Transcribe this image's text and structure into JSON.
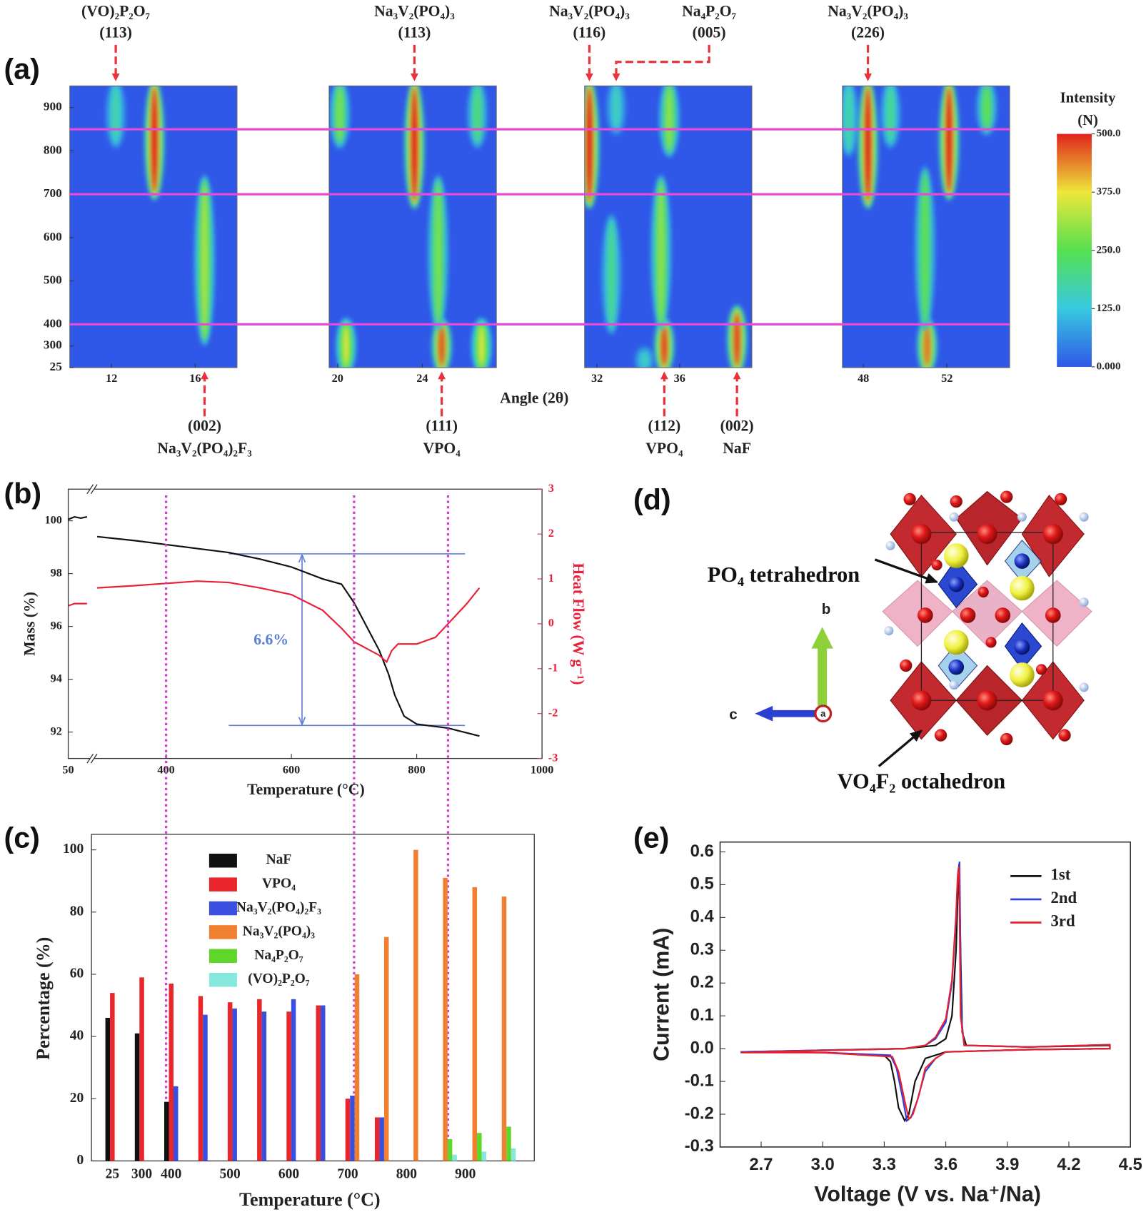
{
  "chart_data": [
    {
      "type": "heatmap",
      "label": "(a)",
      "xlabel": "Angle (2θ)",
      "ylim": [
        25,
        950
      ],
      "yticks": [
        25,
        300,
        400,
        500,
        600,
        700,
        800,
        900
      ],
      "colormap": [
        "#2f57e8",
        "#38c9e0",
        "#55e050",
        "#eee63a",
        "#e0241c"
      ],
      "clim": [
        0,
        500
      ],
      "colorbar_title": "Intensity",
      "colorbar_unit": "(N)",
      "colorbar_ticks": [
        {
          "value": 500,
          "label": "500.0"
        },
        {
          "value": 375,
          "label": "375.0"
        },
        {
          "value": 250,
          "label": "250.0"
        },
        {
          "value": 125,
          "label": "125.0"
        },
        {
          "value": 0,
          "label": "0.000"
        }
      ],
      "hlines": [
        850,
        700,
        400
      ],
      "hline_color": "#e64ad8",
      "panels": [
        {
          "xlim": [
            10,
            18
          ],
          "xticks": [
            12,
            16
          ],
          "peaks": [
            {
              "angle": 12.2,
              "from": 820,
              "to": 950,
              "intensity": 180
            },
            {
              "angle": 14.05,
              "from": 700,
              "to": 950,
              "intensity": 500
            },
            {
              "angle": 16.45,
              "from": 330,
              "to": 730,
              "intensity": 320
            }
          ]
        },
        {
          "xlim": [
            19.6,
            27.5
          ],
          "xticks": [
            20,
            24
          ],
          "peaks": [
            {
              "angle": 20.1,
              "from": 820,
              "to": 950,
              "intensity": 280
            },
            {
              "angle": 20.4,
              "from": 25,
              "to": 400,
              "intensity": 360
            },
            {
              "angle": 23.63,
              "from": 680,
              "to": 950,
              "intensity": 500
            },
            {
              "angle": 24.92,
              "from": 25,
              "to": 400,
              "intensity": 470
            },
            {
              "angle": 24.75,
              "from": 400,
              "to": 730,
              "intensity": 280
            },
            {
              "angle": 26.8,
              "from": 25,
              "to": 400,
              "intensity": 360
            },
            {
              "angle": 26.6,
              "from": 820,
              "to": 950,
              "intensity": 220
            }
          ]
        },
        {
          "xlim": [
            31.4,
            39.5
          ],
          "xticks": [
            32,
            36
          ],
          "peaks": [
            {
              "angle": 31.63,
              "from": 680,
              "to": 950,
              "intensity": 500
            },
            {
              "angle": 32.93,
              "from": 850,
              "to": 950,
              "intensity": 160
            },
            {
              "angle": 32.7,
              "from": 380,
              "to": 640,
              "intensity": 200
            },
            {
              "angle": 34.3,
              "from": 25,
              "to": 220,
              "intensity": 160
            },
            {
              "angle": 35.26,
              "from": 25,
              "to": 400,
              "intensity": 480
            },
            {
              "angle": 35.1,
              "from": 400,
              "to": 730,
              "intensity": 300
            },
            {
              "angle": 35.5,
              "from": 800,
              "to": 950,
              "intensity": 300
            },
            {
              "angle": 38.78,
              "from": 25,
              "to": 430,
              "intensity": 480
            }
          ]
        },
        {
          "xlim": [
            47,
            55
          ],
          "xticks": [
            48,
            52
          ],
          "peaks": [
            {
              "angle": 47.3,
              "from": 800,
              "to": 950,
              "intensity": 180
            },
            {
              "angle": 48.22,
              "from": 680,
              "to": 950,
              "intensity": 500
            },
            {
              "angle": 49.3,
              "from": 820,
              "to": 950,
              "intensity": 200
            },
            {
              "angle": 51.05,
              "from": 25,
              "to": 400,
              "intensity": 450
            },
            {
              "angle": 50.95,
              "from": 400,
              "to": 750,
              "intensity": 260
            },
            {
              "angle": 52.1,
              "from": 700,
              "to": 950,
              "intensity": 500
            },
            {
              "angle": 53.9,
              "from": 850,
              "to": 950,
              "intensity": 260
            }
          ]
        }
      ],
      "annotations_top": [
        {
          "lines": [
            "(VO)₂P₂O₇",
            "(113)"
          ],
          "angle": 12.2
        },
        {
          "lines": [
            "Na₃V₂(PO₄)₃",
            "(113)"
          ],
          "angle": 23.63
        },
        {
          "lines": [
            "Na₃V₂(PO₄)₃",
            "(116)"
          ],
          "angle": 31.63
        },
        {
          "lines": [
            "Na₄P₂O₇",
            "(005)"
          ],
          "angle": 32.93
        },
        {
          "lines": [
            "Na₃V₂(PO₄)₃",
            "(226)"
          ],
          "angle": 48.22
        }
      ],
      "annotations_bottom": [
        {
          "lines": [
            "(002)",
            "Na₃V₂(PO₄)₂F₃"
          ],
          "angle": 16.45
        },
        {
          "lines": [
            "(111)",
            "VPO₄"
          ],
          "angle": 24.92
        },
        {
          "lines": [
            "(112)",
            "VPO₄"
          ],
          "angle": 35.26
        },
        {
          "lines": [
            "(002)",
            "NaF"
          ],
          "angle": 38.78
        }
      ],
      "annotation_color": "#e8323c"
    },
    {
      "type": "line",
      "label": "(b)",
      "xlabel": "Temperature (°C)",
      "ylabel": "Mass (%)",
      "y2label": "Heat Flow (W g⁻¹)",
      "xlim": [
        50,
        1000
      ],
      "xbreak": [
        85,
        285
      ],
      "xticks": [
        50,
        400,
        600,
        800,
        1000
      ],
      "ylim": [
        91,
        101.2
      ],
      "yticks": [
        92,
        94,
        96,
        98,
        100
      ],
      "y2lim": [
        -3,
        3
      ],
      "y2ticks": [
        -3,
        -2,
        -1,
        0,
        1,
        2,
        3
      ],
      "y2color": "#e8203a",
      "series": [
        {
          "color": "#111111",
          "x": [
            50,
            60,
            70,
            80,
            290,
            350,
            400,
            450,
            500,
            550,
            600,
            650,
            680,
            700,
            720,
            740,
            755,
            765,
            780,
            800,
            850,
            900
          ],
          "values": [
            100.05,
            100.15,
            100.1,
            100.15,
            99.4,
            99.25,
            99.1,
            98.95,
            98.8,
            98.55,
            98.25,
            97.8,
            97.6,
            96.9,
            96.0,
            95.1,
            94.2,
            93.4,
            92.6,
            92.3,
            92.15,
            91.85
          ]
        },
        {
          "color": "#e8203a",
          "axis": "y2",
          "x": [
            50,
            60,
            70,
            80,
            290,
            350,
            400,
            450,
            500,
            550,
            600,
            650,
            680,
            700,
            720,
            740,
            752,
            760,
            770,
            800,
            830,
            850,
            880,
            900
          ],
          "values": [
            0.4,
            0.45,
            0.45,
            0.45,
            0.8,
            0.85,
            0.9,
            0.95,
            0.92,
            0.8,
            0.65,
            0.3,
            -0.1,
            -0.4,
            -0.55,
            -0.7,
            -0.85,
            -0.6,
            -0.45,
            -0.45,
            -0.3,
            0.0,
            0.45,
            0.8
          ]
        }
      ],
      "reference_lines": {
        "values": [
          98.75,
          92.25
        ],
        "x": [
          500,
          877
        ],
        "color": "#5b7fd6"
      },
      "bracket": {
        "label": "6.6%",
        "x": 617
      },
      "vlines": [
        400,
        700,
        850
      ],
      "vline_color": "#d040d0"
    },
    {
      "type": "bar",
      "label": "(c)",
      "xlabel": "Temperature (°C)",
      "ylabel": "Percentage (%)",
      "categories": [
        "25",
        "300",
        "400",
        null,
        "500",
        null,
        "600",
        null,
        "700",
        null,
        "800",
        null,
        "900",
        null
      ],
      "ylim": [
        0,
        105
      ],
      "yticks": [
        0,
        20,
        40,
        60,
        80,
        100
      ],
      "series": [
        {
          "name": "NaF",
          "color": "#111111",
          "values": [
            46,
            41,
            19,
            null,
            null,
            null,
            null,
            null,
            null,
            null,
            null,
            null,
            null,
            null
          ]
        },
        {
          "name": "VPO₄",
          "color": "#e8262c",
          "values": [
            54,
            59,
            57,
            53,
            51,
            52,
            48,
            50,
            20,
            14,
            null,
            null,
            null,
            null
          ]
        },
        {
          "name": "Na₃V₂(PO₄)₂F₃",
          "color": "#3a4fe0",
          "values": [
            null,
            null,
            24,
            47,
            49,
            48,
            52,
            50,
            21,
            14,
            null,
            null,
            null,
            null
          ]
        },
        {
          "name": "Na₃V₂(PO₄)₃",
          "color": "#f07f30",
          "values": [
            null,
            null,
            null,
            null,
            null,
            null,
            null,
            null,
            60,
            72,
            100,
            91,
            88,
            85
          ]
        },
        {
          "name": "Na₄P₂O₇",
          "color": "#5ed62a",
          "values": [
            null,
            null,
            null,
            null,
            null,
            null,
            null,
            null,
            null,
            null,
            null,
            7,
            9,
            11
          ]
        },
        {
          "name": "(VO)₂P₂O₇",
          "color": "#86e8dc",
          "values": [
            null,
            null,
            null,
            null,
            null,
            null,
            null,
            null,
            null,
            null,
            null,
            2,
            3,
            4
          ]
        }
      ],
      "legend": "upper left"
    },
    {
      "type": "line",
      "label": "(e)",
      "xlabel": "Voltage (V vs. Na⁺/Na)",
      "ylabel": "Current (mA)",
      "xlim": [
        2.5,
        4.5
      ],
      "xticks": [
        2.7,
        {
          "value": 3,
          "label": "3.0"
        },
        3.3,
        3.6,
        3.9,
        4.2,
        4.5
      ],
      "ylim": [
        -0.3,
        0.63
      ],
      "yticks": [
        -0.3,
        -0.2,
        -0.1,
        {
          "value": 0,
          "label": "0.0"
        },
        0.1,
        0.2,
        0.3,
        0.4,
        0.5,
        0.6
      ],
      "legend": "upper right",
      "series": [
        {
          "name": "1st",
          "color": "#111111",
          "x": [
            2.6,
            3.0,
            3.4,
            3.55,
            3.6,
            3.63,
            3.65,
            3.66,
            3.665,
            3.672,
            3.68,
            3.7,
            4.0,
            4.4,
            4.4,
            4.0,
            3.6,
            3.5,
            3.45,
            3.42,
            3.4,
            3.37,
            3.35,
            3.33,
            3.3,
            3.0,
            2.6
          ],
          "values": [
            -0.01,
            -0.005,
            0.0,
            0.01,
            0.03,
            0.1,
            0.3,
            0.5,
            0.56,
            0.3,
            0.05,
            0.01,
            0.005,
            0.01,
            0.0,
            -0.003,
            -0.01,
            -0.03,
            -0.1,
            -0.2,
            -0.22,
            -0.18,
            -0.1,
            -0.04,
            -0.02,
            -0.012,
            -0.01
          ]
        },
        {
          "name": "2nd",
          "color": "#2a3fe0",
          "x": [
            2.6,
            3.0,
            3.4,
            3.5,
            3.55,
            3.6,
            3.63,
            3.65,
            3.66,
            3.667,
            3.675,
            3.69,
            4.0,
            4.4,
            4.4,
            4.0,
            3.6,
            3.55,
            3.5,
            3.46,
            3.43,
            3.41,
            3.39,
            3.36,
            3.33,
            3.0,
            2.6
          ],
          "values": [
            -0.01,
            -0.005,
            0.0,
            0.01,
            0.03,
            0.08,
            0.2,
            0.4,
            0.54,
            0.57,
            0.1,
            0.01,
            0.005,
            0.012,
            0.0,
            -0.003,
            -0.01,
            -0.03,
            -0.07,
            -0.16,
            -0.21,
            -0.22,
            -0.15,
            -0.06,
            -0.02,
            -0.012,
            -0.01
          ]
        },
        {
          "name": "3rd",
          "color": "#e8202c",
          "x": [
            2.6,
            3.0,
            3.4,
            3.5,
            3.55,
            3.6,
            3.63,
            3.65,
            3.658,
            3.665,
            3.672,
            3.69,
            4.0,
            4.4,
            4.4,
            4.0,
            3.6,
            3.55,
            3.5,
            3.47,
            3.44,
            3.42,
            3.4,
            3.37,
            3.34,
            3.0,
            2.6
          ],
          "values": [
            -0.012,
            -0.006,
            0.0,
            0.01,
            0.035,
            0.09,
            0.21,
            0.41,
            0.53,
            0.555,
            0.1,
            0.01,
            0.005,
            0.012,
            0.0,
            -0.003,
            -0.01,
            -0.03,
            -0.06,
            -0.14,
            -0.2,
            -0.215,
            -0.16,
            -0.07,
            -0.025,
            -0.012,
            -0.012
          ]
        }
      ]
    }
  ],
  "structure": {
    "label": "(d)",
    "tetrahedron": "PO₄ tetrahedron",
    "octahedron": "VO₄F₂ octahedron",
    "axes": [
      "b",
      "c",
      "a"
    ]
  }
}
